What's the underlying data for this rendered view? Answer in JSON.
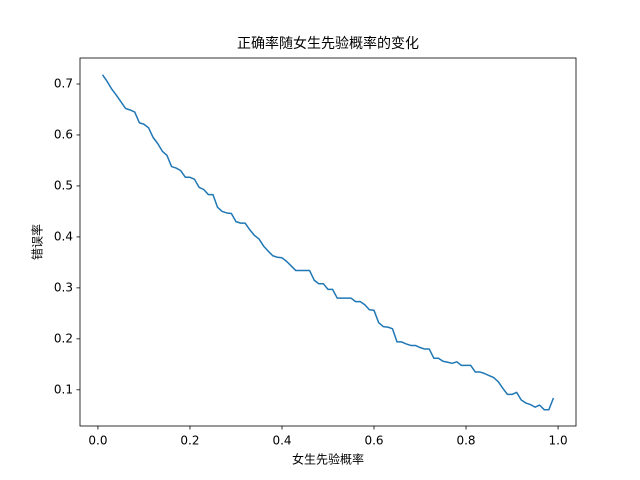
{
  "chart_data": {
    "type": "line",
    "title": "正确率随女生先验概率的变化",
    "x_label": "女生先验概率",
    "y_label": "错误率",
    "color": "#1f77b4",
    "x": [
      0.01,
      0.02,
      0.03,
      0.04,
      0.05,
      0.06,
      0.07,
      0.08,
      0.09,
      0.1,
      0.11,
      0.12,
      0.13,
      0.14,
      0.15,
      0.16,
      0.17,
      0.18,
      0.19,
      0.2,
      0.21,
      0.22,
      0.23,
      0.24,
      0.25,
      0.26,
      0.27,
      0.28,
      0.29,
      0.3,
      0.31,
      0.32,
      0.33,
      0.34,
      0.35,
      0.36,
      0.37,
      0.38,
      0.39,
      0.4,
      0.41,
      0.42,
      0.43,
      0.44,
      0.45,
      0.46,
      0.47,
      0.48,
      0.49,
      0.5,
      0.51,
      0.52,
      0.53,
      0.54,
      0.55,
      0.56,
      0.57,
      0.58,
      0.59,
      0.6,
      0.61,
      0.62,
      0.63,
      0.64,
      0.65,
      0.66,
      0.67,
      0.68,
      0.69,
      0.7,
      0.71,
      0.72,
      0.73,
      0.74,
      0.75,
      0.76,
      0.77,
      0.78,
      0.79,
      0.8,
      0.81,
      0.82,
      0.83,
      0.84,
      0.85,
      0.86,
      0.87,
      0.88,
      0.89,
      0.9,
      0.91,
      0.92,
      0.93,
      0.94,
      0.95,
      0.96,
      0.97,
      0.98,
      0.99
    ],
    "values": [
      0.718,
      0.705,
      0.69,
      0.678,
      0.665,
      0.652,
      0.649,
      0.645,
      0.624,
      0.621,
      0.614,
      0.595,
      0.583,
      0.568,
      0.56,
      0.538,
      0.535,
      0.53,
      0.517,
      0.517,
      0.513,
      0.497,
      0.493,
      0.483,
      0.483,
      0.458,
      0.45,
      0.447,
      0.446,
      0.43,
      0.427,
      0.427,
      0.414,
      0.403,
      0.396,
      0.382,
      0.372,
      0.363,
      0.36,
      0.359,
      0.352,
      0.343,
      0.334,
      0.334,
      0.334,
      0.334,
      0.315,
      0.308,
      0.308,
      0.297,
      0.297,
      0.28,
      0.28,
      0.28,
      0.28,
      0.273,
      0.273,
      0.267,
      0.257,
      0.256,
      0.232,
      0.224,
      0.223,
      0.22,
      0.194,
      0.194,
      0.19,
      0.187,
      0.187,
      0.183,
      0.18,
      0.18,
      0.162,
      0.162,
      0.156,
      0.154,
      0.152,
      0.155,
      0.148,
      0.148,
      0.148,
      0.135,
      0.135,
      0.132,
      0.128,
      0.124,
      0.116,
      0.103,
      0.091,
      0.091,
      0.095,
      0.08,
      0.074,
      0.071,
      0.066,
      0.07,
      0.061,
      0.061,
      0.084
    ],
    "xlim": [
      -0.039,
      1.039
    ],
    "ylim": [
      0.029,
      0.751
    ],
    "xticks": [
      {
        "value": 0,
        "label": "0.0"
      },
      0.2,
      0.4,
      0.6,
      0.8,
      {
        "value": 1,
        "label": "1.0"
      }
    ],
    "yticks": [
      0.1,
      0.2,
      0.3,
      0.4,
      0.5,
      0.6,
      0.7
    ]
  }
}
